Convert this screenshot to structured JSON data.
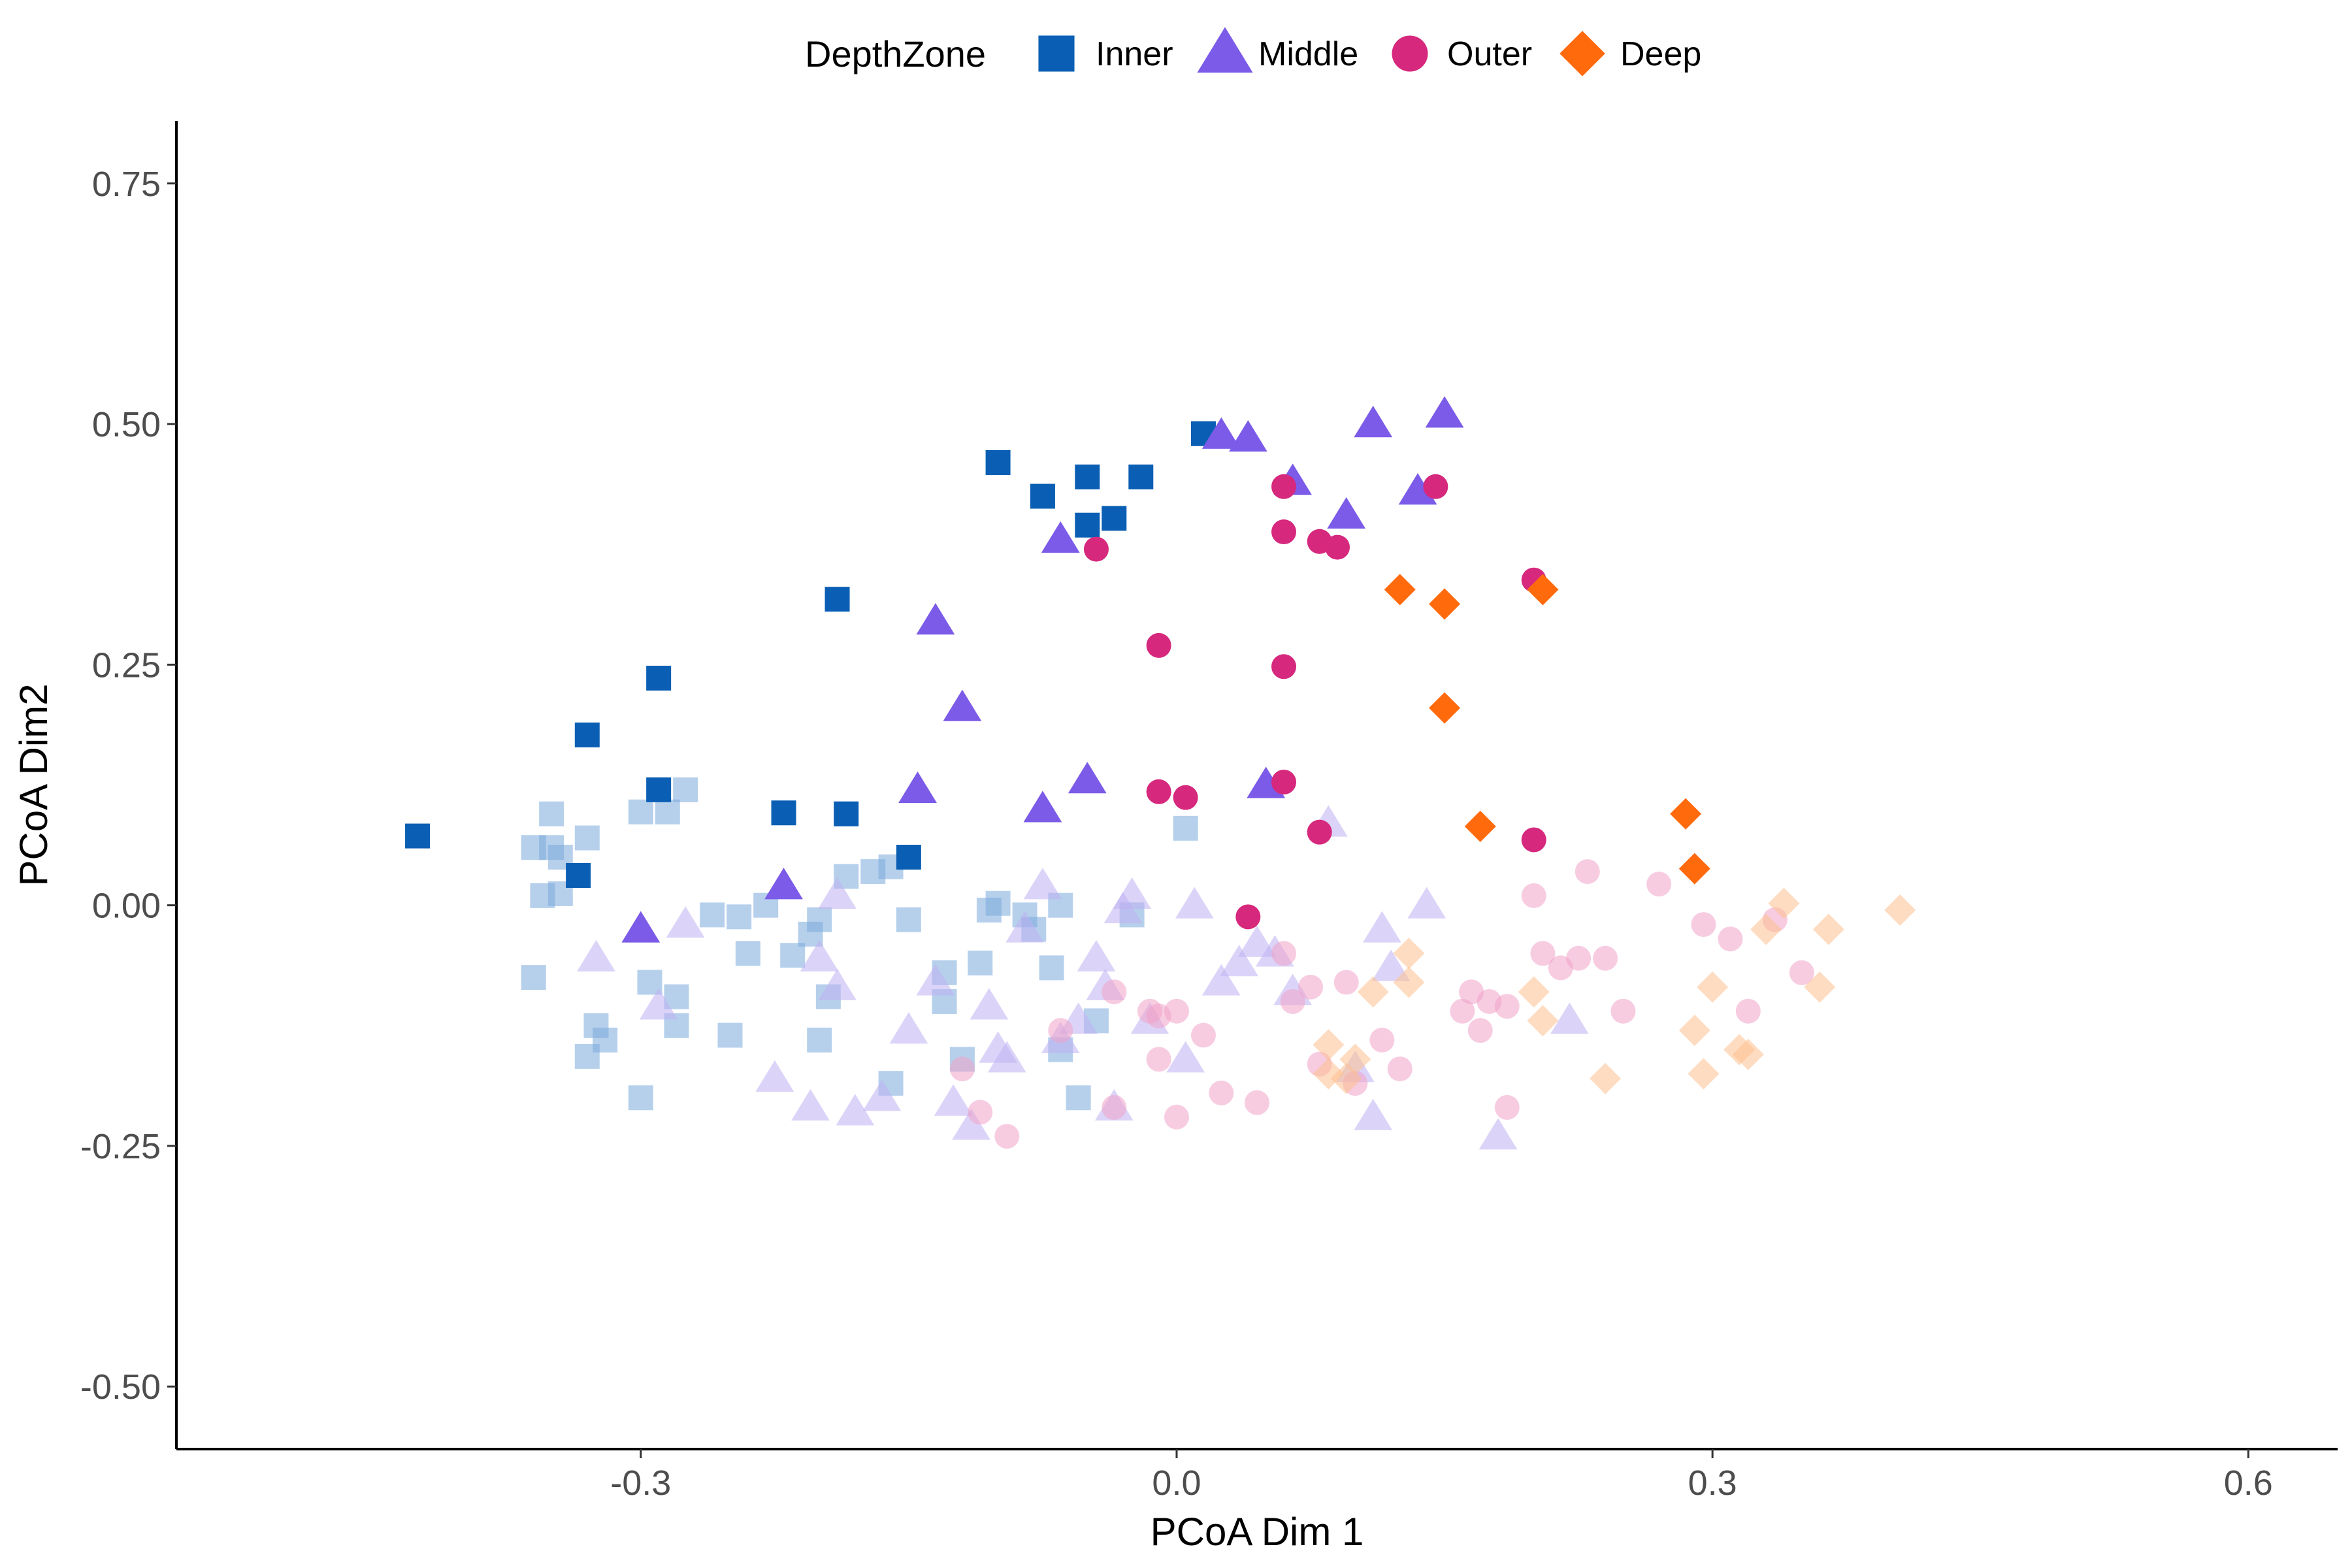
{
  "chart_data": {
    "type": "scatter",
    "title": "",
    "xlabel": "PCoA Dim 1",
    "ylabel": "PCoA Dim2",
    "xlim": [
      -0.56,
      0.65
    ],
    "ylim": [
      -0.565,
      0.815
    ],
    "xticks": [
      -0.3,
      0.0,
      0.3,
      0.6
    ],
    "xtick_labels": [
      "-0.3",
      "0.0",
      "0.3",
      "0.6"
    ],
    "yticks": [
      -0.5,
      -0.25,
      0.0,
      0.25,
      0.5,
      0.75
    ],
    "ytick_labels": [
      "-0.50",
      "-0.25",
      "0.00",
      "0.25",
      "0.50",
      "0.75"
    ],
    "grid": false,
    "legend": {
      "title": "DepthZone",
      "position": "top"
    },
    "series": [
      {
        "name": "Inner",
        "color": "#0a5fb4",
        "shape": "square",
        "points": [
          [
            -0.425,
            0.072
          ],
          [
            -0.33,
            0.177
          ],
          [
            -0.29,
            0.236
          ],
          [
            -0.29,
            0.12
          ],
          [
            -0.335,
            0.031
          ],
          [
            -0.22,
            0.096
          ],
          [
            -0.19,
            0.318
          ],
          [
            -0.185,
            0.095
          ],
          [
            -0.15,
            0.05
          ],
          [
            -0.1,
            0.46
          ],
          [
            -0.075,
            0.425
          ],
          [
            -0.05,
            0.445
          ],
          [
            -0.05,
            0.395
          ],
          [
            -0.035,
            0.402
          ],
          [
            -0.02,
            0.445
          ],
          [
            0.015,
            0.49
          ]
        ]
      },
      {
        "name": "Middle",
        "color": "#7b5be8",
        "shape": "triangle",
        "points": [
          [
            -0.3,
            -0.025
          ],
          [
            -0.22,
            0.02
          ],
          [
            -0.135,
            0.295
          ],
          [
            -0.12,
            0.205
          ],
          [
            -0.145,
            0.12
          ],
          [
            -0.075,
            0.1
          ],
          [
            -0.065,
            0.38
          ],
          [
            -0.05,
            0.13
          ],
          [
            0.025,
            0.488
          ],
          [
            0.04,
            0.485
          ],
          [
            0.05,
            0.125
          ],
          [
            0.065,
            0.44
          ],
          [
            0.095,
            0.405
          ],
          [
            0.11,
            0.5
          ],
          [
            0.135,
            0.43
          ],
          [
            0.15,
            0.51
          ]
        ]
      },
      {
        "name": "Outer",
        "color": "#d6287d",
        "shape": "circle",
        "points": [
          [
            -0.045,
            0.37
          ],
          [
            -0.01,
            0.27
          ],
          [
            -0.01,
            0.118
          ],
          [
            0.005,
            0.112
          ],
          [
            0.04,
            -0.012
          ],
          [
            0.06,
            0.435
          ],
          [
            0.06,
            0.388
          ],
          [
            0.06,
            0.248
          ],
          [
            0.06,
            0.128
          ],
          [
            0.08,
            0.378
          ],
          [
            0.09,
            0.372
          ],
          [
            0.08,
            0.076
          ],
          [
            0.145,
            0.435
          ],
          [
            0.2,
            0.338
          ],
          [
            0.2,
            0.068
          ]
        ]
      },
      {
        "name": "Deep",
        "color": "#ff6a0d",
        "shape": "diamond",
        "points": [
          [
            0.125,
            0.328
          ],
          [
            0.15,
            0.313
          ],
          [
            0.15,
            0.205
          ],
          [
            0.17,
            0.082
          ],
          [
            0.205,
            0.328
          ],
          [
            0.285,
            0.095
          ],
          [
            0.29,
            0.038
          ]
        ]
      }
    ],
    "faded_series": [
      {
        "name": "Inner",
        "color": "#7aa9dd",
        "shape": "square",
        "points": [
          [
            -0.35,
            0.095
          ],
          [
            -0.36,
            0.06
          ],
          [
            -0.35,
            0.06
          ],
          [
            -0.345,
            0.05
          ],
          [
            -0.33,
            0.07
          ],
          [
            -0.355,
            0.01
          ],
          [
            -0.345,
            0.012
          ],
          [
            -0.3,
            0.097
          ],
          [
            -0.285,
            0.097
          ],
          [
            -0.275,
            0.12
          ],
          [
            -0.36,
            -0.075
          ],
          [
            -0.325,
            -0.125
          ],
          [
            -0.32,
            -0.14
          ],
          [
            -0.33,
            -0.157
          ],
          [
            -0.295,
            -0.08
          ],
          [
            -0.28,
            -0.095
          ],
          [
            -0.26,
            -0.01
          ],
          [
            -0.245,
            -0.012
          ],
          [
            -0.23,
            0.0
          ],
          [
            -0.24,
            -0.05
          ],
          [
            -0.215,
            -0.052
          ],
          [
            -0.205,
            -0.03
          ],
          [
            -0.2,
            -0.015
          ],
          [
            -0.195,
            -0.095
          ],
          [
            -0.2,
            -0.14
          ],
          [
            -0.185,
            0.03
          ],
          [
            -0.17,
            0.035
          ],
          [
            -0.16,
            0.04
          ],
          [
            -0.16,
            -0.185
          ],
          [
            -0.15,
            -0.015
          ],
          [
            -0.13,
            -0.07
          ],
          [
            -0.13,
            -0.1
          ],
          [
            -0.12,
            -0.16
          ],
          [
            -0.11,
            -0.06
          ],
          [
            -0.105,
            -0.005
          ],
          [
            -0.1,
            0.002
          ],
          [
            -0.085,
            -0.01
          ],
          [
            -0.08,
            -0.025
          ],
          [
            -0.07,
            -0.065
          ],
          [
            -0.065,
            0.0
          ],
          [
            -0.055,
            -0.2
          ],
          [
            -0.045,
            -0.12
          ],
          [
            -0.025,
            -0.01
          ],
          [
            0.005,
            0.08
          ],
          [
            -0.28,
            -0.125
          ],
          [
            -0.25,
            -0.135
          ],
          [
            -0.3,
            -0.2
          ],
          [
            -0.065,
            -0.15
          ]
        ]
      },
      {
        "name": "Middle",
        "color": "#bfb1f3",
        "shape": "triangle",
        "points": [
          [
            -0.325,
            -0.055
          ],
          [
            -0.29,
            -0.105
          ],
          [
            -0.275,
            -0.02
          ],
          [
            -0.225,
            -0.18
          ],
          [
            -0.205,
            -0.21
          ],
          [
            -0.2,
            -0.055
          ],
          [
            -0.19,
            -0.085
          ],
          [
            -0.18,
            -0.215
          ],
          [
            -0.165,
            -0.2
          ],
          [
            -0.15,
            -0.13
          ],
          [
            -0.135,
            -0.08
          ],
          [
            -0.125,
            -0.205
          ],
          [
            -0.115,
            -0.23
          ],
          [
            -0.105,
            -0.105
          ],
          [
            -0.1,
            -0.15
          ],
          [
            -0.095,
            -0.16
          ],
          [
            -0.085,
            -0.025
          ],
          [
            -0.075,
            0.02
          ],
          [
            -0.065,
            -0.14
          ],
          [
            -0.055,
            -0.12
          ],
          [
            -0.045,
            -0.055
          ],
          [
            -0.04,
            -0.085
          ],
          [
            -0.035,
            -0.21
          ],
          [
            -0.025,
            0.01
          ],
          [
            -0.015,
            -0.12
          ],
          [
            0.005,
            -0.16
          ],
          [
            0.01,
            0.0
          ],
          [
            0.025,
            -0.08
          ],
          [
            0.035,
            -0.06
          ],
          [
            0.045,
            -0.04
          ],
          [
            0.055,
            -0.05
          ],
          [
            0.065,
            -0.09
          ],
          [
            0.085,
            0.085
          ],
          [
            0.1,
            -0.17
          ],
          [
            0.11,
            -0.22
          ],
          [
            0.115,
            -0.025
          ],
          [
            0.12,
            -0.065
          ],
          [
            0.14,
            0.0
          ],
          [
            0.18,
            -0.24
          ],
          [
            0.22,
            -0.12
          ],
          [
            -0.19,
            0.01
          ],
          [
            -0.03,
            -0.005
          ]
        ]
      },
      {
        "name": "Outer",
        "color": "#f0a3c8",
        "shape": "circle",
        "points": [
          [
            -0.12,
            -0.17
          ],
          [
            -0.11,
            -0.215
          ],
          [
            -0.095,
            -0.24
          ],
          [
            -0.065,
            -0.13
          ],
          [
            -0.035,
            -0.09
          ],
          [
            -0.035,
            -0.21
          ],
          [
            -0.015,
            -0.11
          ],
          [
            -0.01,
            -0.115
          ],
          [
            -0.01,
            -0.16
          ],
          [
            0.0,
            -0.11
          ],
          [
            0.0,
            -0.22
          ],
          [
            0.015,
            -0.135
          ],
          [
            0.025,
            -0.195
          ],
          [
            0.045,
            -0.205
          ],
          [
            0.06,
            -0.05
          ],
          [
            0.065,
            -0.1
          ],
          [
            0.075,
            -0.085
          ],
          [
            0.08,
            -0.165
          ],
          [
            0.095,
            -0.08
          ],
          [
            0.1,
            -0.185
          ],
          [
            0.115,
            -0.14
          ],
          [
            0.125,
            -0.17
          ],
          [
            0.16,
            -0.11
          ],
          [
            0.165,
            -0.09
          ],
          [
            0.17,
            -0.13
          ],
          [
            0.175,
            -0.1
          ],
          [
            0.185,
            -0.105
          ],
          [
            0.185,
            -0.21
          ],
          [
            0.2,
            0.01
          ],
          [
            0.205,
            -0.05
          ],
          [
            0.215,
            -0.065
          ],
          [
            0.225,
            -0.055
          ],
          [
            0.23,
            0.035
          ],
          [
            0.24,
            -0.055
          ],
          [
            0.25,
            -0.11
          ],
          [
            0.27,
            0.022
          ],
          [
            0.295,
            -0.02
          ],
          [
            0.31,
            -0.035
          ],
          [
            0.32,
            -0.11
          ],
          [
            0.335,
            -0.015
          ],
          [
            0.35,
            -0.07
          ]
        ]
      },
      {
        "name": "Deep",
        "color": "#fdbf8e",
        "shape": "diamond",
        "points": [
          [
            0.085,
            -0.145
          ],
          [
            0.085,
            -0.175
          ],
          [
            0.095,
            -0.18
          ],
          [
            0.1,
            -0.16
          ],
          [
            0.11,
            -0.09
          ],
          [
            0.13,
            -0.05
          ],
          [
            0.13,
            -0.08
          ],
          [
            0.2,
            -0.09
          ],
          [
            0.205,
            -0.12
          ],
          [
            0.24,
            -0.18
          ],
          [
            0.29,
            -0.13
          ],
          [
            0.295,
            -0.175
          ],
          [
            0.3,
            -0.085
          ],
          [
            0.315,
            -0.15
          ],
          [
            0.32,
            -0.155
          ],
          [
            0.33,
            -0.025
          ],
          [
            0.34,
            0.002
          ],
          [
            0.36,
            -0.085
          ],
          [
            0.365,
            -0.025
          ],
          [
            0.405,
            -0.005
          ]
        ]
      }
    ]
  }
}
